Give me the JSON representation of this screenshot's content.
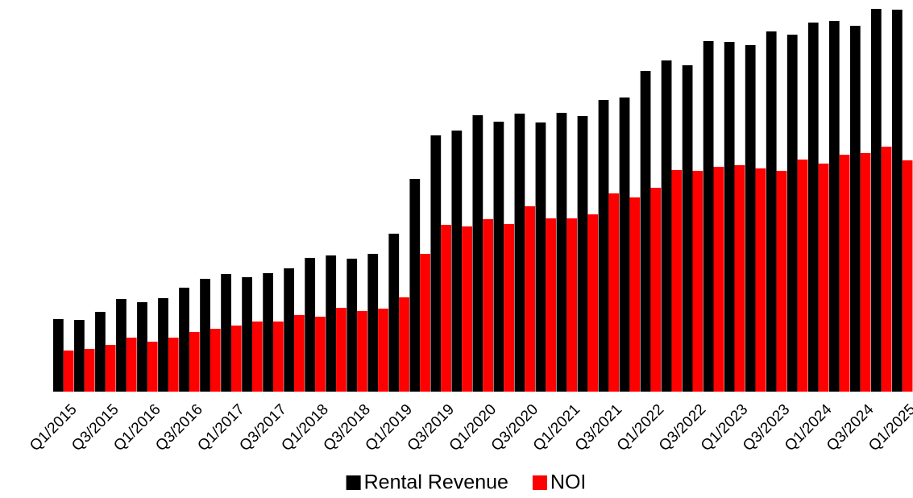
{
  "chart_data": {
    "type": "grouped_bar",
    "categories": [
      "Q1/2015",
      null,
      "Q3/2015",
      null,
      "Q1/2016",
      null,
      "Q3/2016",
      null,
      "Q1/2017",
      null,
      "Q3/2017",
      null,
      "Q1/2018",
      null,
      "Q3/2018",
      null,
      "Q1/2019",
      null,
      "Q3/2019",
      null,
      "Q1/2020",
      null,
      "Q3/2020",
      null,
      "Q1/2021",
      null,
      "Q3/2021",
      null,
      "Q1/2022",
      null,
      "Q3/2022",
      null,
      "Q1/2023",
      null,
      "Q3/2023",
      null,
      "Q1/2024",
      null,
      "Q3/2024",
      null,
      "Q1/2025"
    ],
    "series": [
      {
        "name": "Rental Revenue",
        "color": "#000000",
        "values": [
          90,
          89,
          99,
          115,
          111,
          116,
          129,
          140,
          146,
          142,
          147,
          153,
          166,
          169,
          165,
          171,
          196,
          264,
          318,
          324,
          343,
          335,
          345,
          334,
          346,
          342,
          362,
          365,
          398,
          411,
          405,
          435,
          434,
          430,
          447,
          443,
          458,
          460,
          454,
          475,
          474
        ]
      },
      {
        "name": "NOI",
        "color": "#ff0000",
        "values": [
          51,
          53,
          58,
          67,
          62,
          67,
          74,
          78,
          82,
          87,
          87,
          95,
          93,
          104,
          100,
          103,
          117,
          171,
          207,
          205,
          214,
          208,
          230,
          215,
          215,
          220,
          246,
          241,
          253,
          275,
          274,
          279,
          281,
          277,
          274,
          288,
          283,
          294,
          296,
          304,
          287
        ]
      }
    ],
    "ylim": [
      0,
      480
    ],
    "legend": "bottom"
  }
}
